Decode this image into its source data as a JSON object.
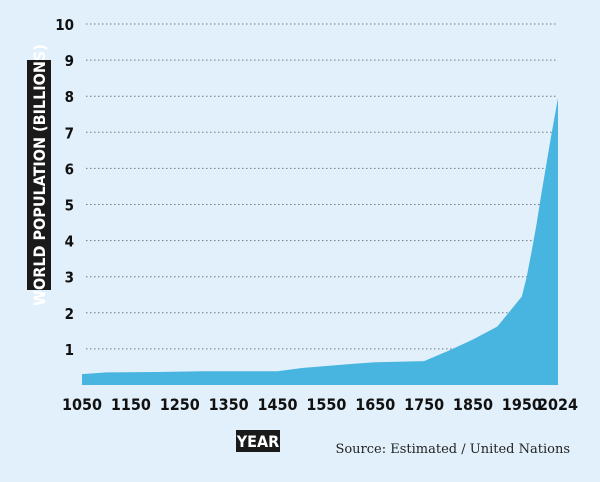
{
  "chart_data": {
    "type": "area",
    "ylabel": "WORLD POPULATION (BILLIONS)",
    "xlabel": "YEAR",
    "source": "Source: Estimated / United Nations",
    "colors": {
      "area": "#48b4e0",
      "background": "#e2f0fb",
      "grid": "#6e7a85",
      "label_box": "#1a1a1a"
    },
    "grid": true,
    "ylim": [
      0,
      10
    ],
    "yticks": [
      "1",
      "2",
      "3",
      "4",
      "5",
      "6",
      "7",
      "8",
      "9",
      "10"
    ],
    "xlim": [
      1050,
      2024
    ],
    "xticks": [
      "1050",
      "1150",
      "1250",
      "1350",
      "1450",
      "1550",
      "1650",
      "1750",
      "1850",
      "1950",
      "2024"
    ],
    "series": [
      {
        "x": [
          1050,
          1100,
          1200,
          1300,
          1400,
          1450,
          1500,
          1600,
          1650,
          1750,
          1800,
          1850,
          1900,
          1950,
          1960,
          1970,
          1980,
          1990,
          2000,
          2010,
          2024
        ],
        "y": [
          0.3,
          0.35,
          0.36,
          0.38,
          0.38,
          0.38,
          0.47,
          0.58,
          0.63,
          0.66,
          0.95,
          1.26,
          1.62,
          2.45,
          3.0,
          3.7,
          4.45,
          5.3,
          6.1,
          6.9,
          7.95
        ]
      }
    ]
  }
}
